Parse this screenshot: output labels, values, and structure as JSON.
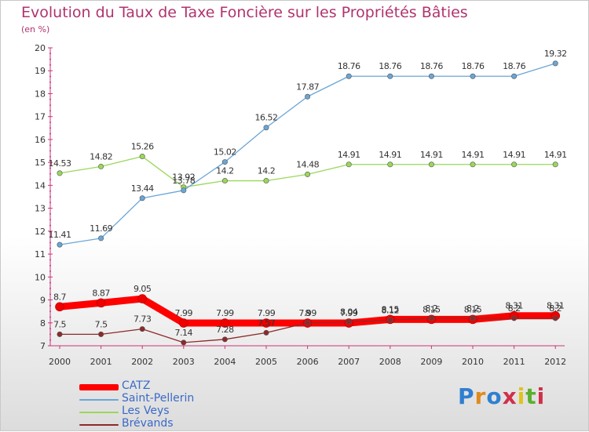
{
  "title": "Evolution du Taux de Taxe Foncière sur les Propriétés Bâties",
  "subtitle": "(en %)",
  "logo_text": "Proxiti",
  "chart_data": {
    "type": "line",
    "x": [
      "2000",
      "2001",
      "2002",
      "2003",
      "2004",
      "2005",
      "2006",
      "2007",
      "2008",
      "2009",
      "2010",
      "2011",
      "2012"
    ],
    "ylim": [
      7,
      20
    ],
    "yticks": [
      "7",
      "8",
      "9",
      "10",
      "11",
      "12",
      "13",
      "14",
      "15",
      "16",
      "17",
      "18",
      "19",
      "20"
    ],
    "grid": false,
    "legend_position": "bottom-left",
    "series": [
      {
        "name": "CATZ",
        "color": "#ff0000",
        "values": [
          8.7,
          8.87,
          9.05,
          7.99,
          7.99,
          7.99,
          7.99,
          7.99,
          8.15,
          8.15,
          8.15,
          8.31,
          8.31
        ],
        "labels": [
          "8.7",
          "8.87",
          "9.05",
          "7.99",
          "7.99",
          "7.99",
          "7.99",
          "7.99",
          "8.15",
          "8.15",
          "8.15",
          "8.31",
          "8.31"
        ]
      },
      {
        "name": "Saint-Pellerin",
        "color": "#6aa6d6",
        "values": [
          11.41,
          11.69,
          13.44,
          13.78,
          15.02,
          16.52,
          17.87,
          18.76,
          18.76,
          18.76,
          18.76,
          18.76,
          19.32
        ],
        "labels": [
          "11.41",
          "11.69",
          "13.44",
          "13.78",
          "15.02",
          "16.52",
          "17.87",
          "18.76",
          "18.76",
          "18.76",
          "18.76",
          "18.76",
          "19.32"
        ]
      },
      {
        "name": "Les Veys",
        "color": "#9ad75a",
        "values": [
          14.53,
          14.82,
          15.26,
          13.92,
          14.2,
          14.2,
          14.48,
          14.91,
          14.91,
          14.91,
          14.91,
          14.91,
          14.91
        ],
        "labels": [
          "14.53",
          "14.82",
          "15.26",
          "13.92",
          "14.2",
          "14.2",
          "14.48",
          "14.91",
          "14.91",
          "14.91",
          "14.91",
          "14.91",
          "14.91"
        ]
      },
      {
        "name": "Brévands",
        "color": "#8c2a2a",
        "values": [
          7.5,
          7.5,
          7.73,
          7.14,
          7.28,
          7.57,
          8.0,
          8.04,
          8.12,
          8.2,
          8.2,
          8.2,
          8.2
        ],
        "labels": [
          "7.5",
          "7.5",
          "7.73",
          "7.14",
          "7.28",
          "7.57",
          "8",
          "8.04",
          "8.12",
          "8.2",
          "8.2",
          "8.2",
          "8.2"
        ]
      }
    ]
  }
}
